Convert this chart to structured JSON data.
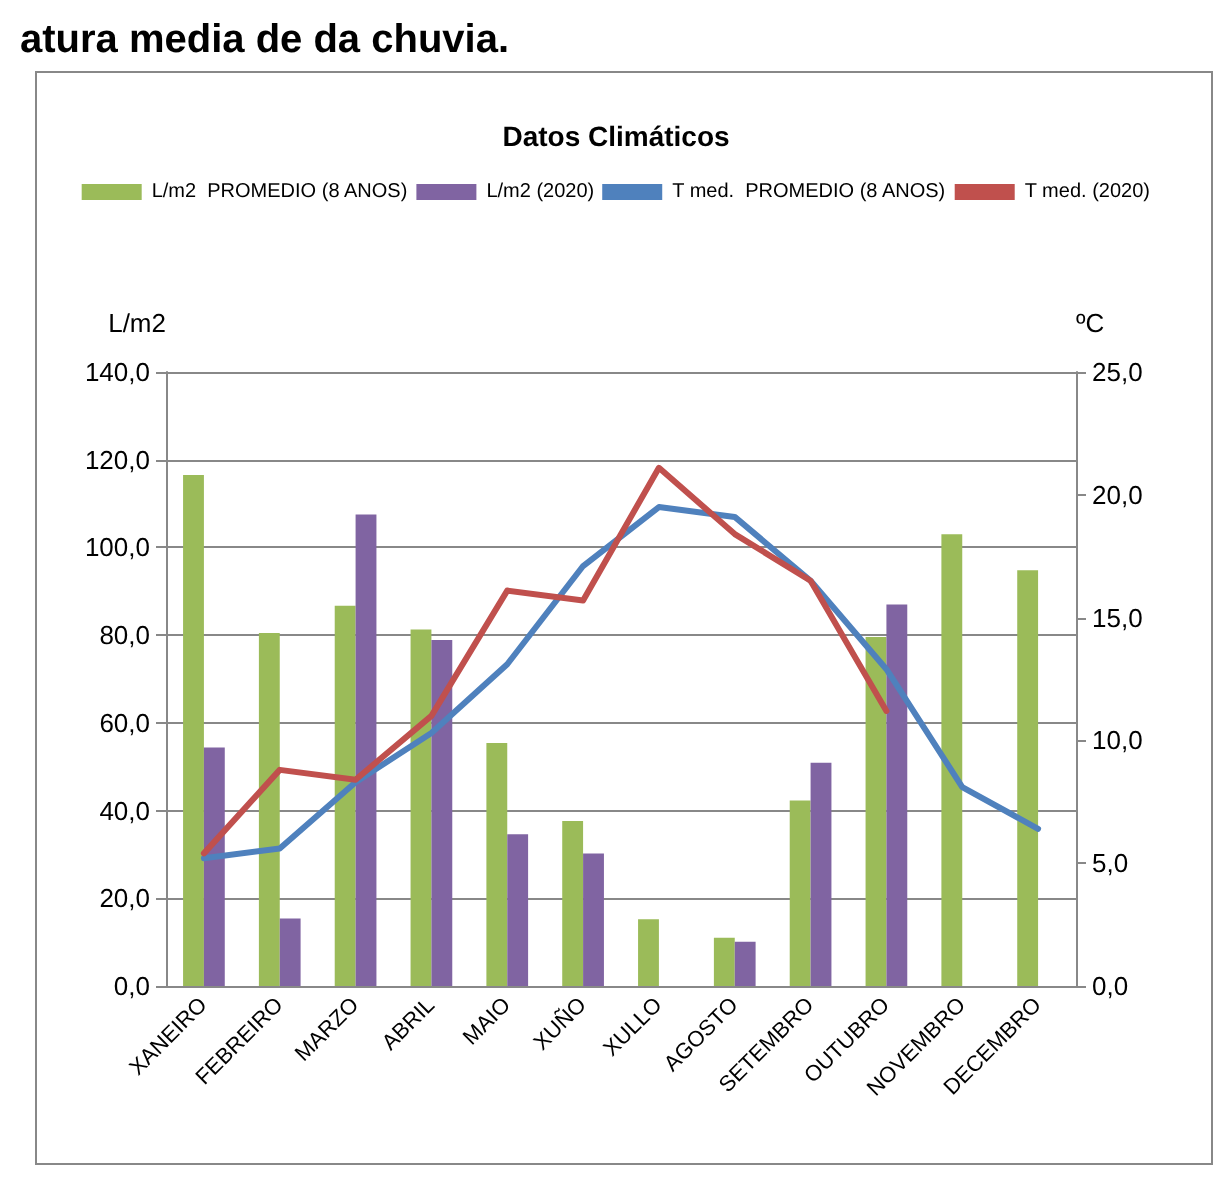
{
  "chart_data": {
    "type": "bar",
    "title": "Datos Climáticos",
    "annotations": [
      "atura media de da chuvia."
    ],
    "categories": [
      "XANEIRO",
      "FEBREIRO",
      "MARZO",
      "ABRIL",
      "MAIO",
      "XUÑO",
      "XULLO",
      "AGOSTO",
      "SETEMBRO",
      "OUTUBRO",
      "NOVEMBRO",
      "DECEMBRO"
    ],
    "series": [
      {
        "name": "L/m2  PROMEDIO (8 ANOS)",
        "color": "#9bbb59",
        "values": [
          116.5,
          80.5,
          86.7,
          81.3,
          55.4,
          37.6,
          15.2,
          11.0,
          42.3,
          79.6,
          103.0,
          94.8
        ]
      },
      {
        "name": "L/m2 (2020)",
        "color": "#8064a2",
        "values": [
          54.4,
          15.4,
          107.5,
          78.9,
          34.6,
          30.2,
          null,
          10.1,
          50.9,
          87.0,
          null,
          null
        ]
      },
      {
        "name": "T med.  PROMEDIO (8 ANOS)",
        "type": "line",
        "axis": "y2",
        "color": "#4f81bd",
        "values": [
          5.2,
          5.6,
          8.3,
          10.3,
          13.1,
          17.1,
          19.5,
          19.1,
          16.5,
          12.9,
          8.1,
          6.4
        ]
      },
      {
        "name": "T med. (2020)",
        "type": "line",
        "axis": "y2",
        "color": "#c0504d",
        "values": [
          5.4,
          8.8,
          8.4,
          11.0,
          16.1,
          15.7,
          21.1,
          18.4,
          16.5,
          11.2,
          null,
          null
        ]
      }
    ],
    "ylabel": "L/m2",
    "y2label": "ºC",
    "ylim": [
      0,
      140
    ],
    "yticks": [
      {
        "value": 0,
        "label": "0,0"
      },
      {
        "value": 20,
        "label": "20,0"
      },
      {
        "value": 40,
        "label": "40,0"
      },
      {
        "value": 60,
        "label": "60,0"
      },
      {
        "value": 80,
        "label": "80,0"
      },
      {
        "value": 100,
        "label": "100,0"
      },
      {
        "value": 120,
        "label": "120,0"
      },
      {
        "value": 140,
        "label": "140,0"
      }
    ],
    "y2lim": [
      0,
      25
    ],
    "y2ticks": [
      {
        "value": 0,
        "label": "0,0"
      },
      {
        "value": 5,
        "label": "5,0"
      },
      {
        "value": 10,
        "label": "10,0"
      },
      {
        "value": 15,
        "label": "15,0"
      },
      {
        "value": 20,
        "label": "20,0"
      },
      {
        "value": 25,
        "label": "25,0"
      }
    ],
    "grid": "y",
    "legend": "top",
    "marker": "none",
    "line_style": "solid"
  }
}
